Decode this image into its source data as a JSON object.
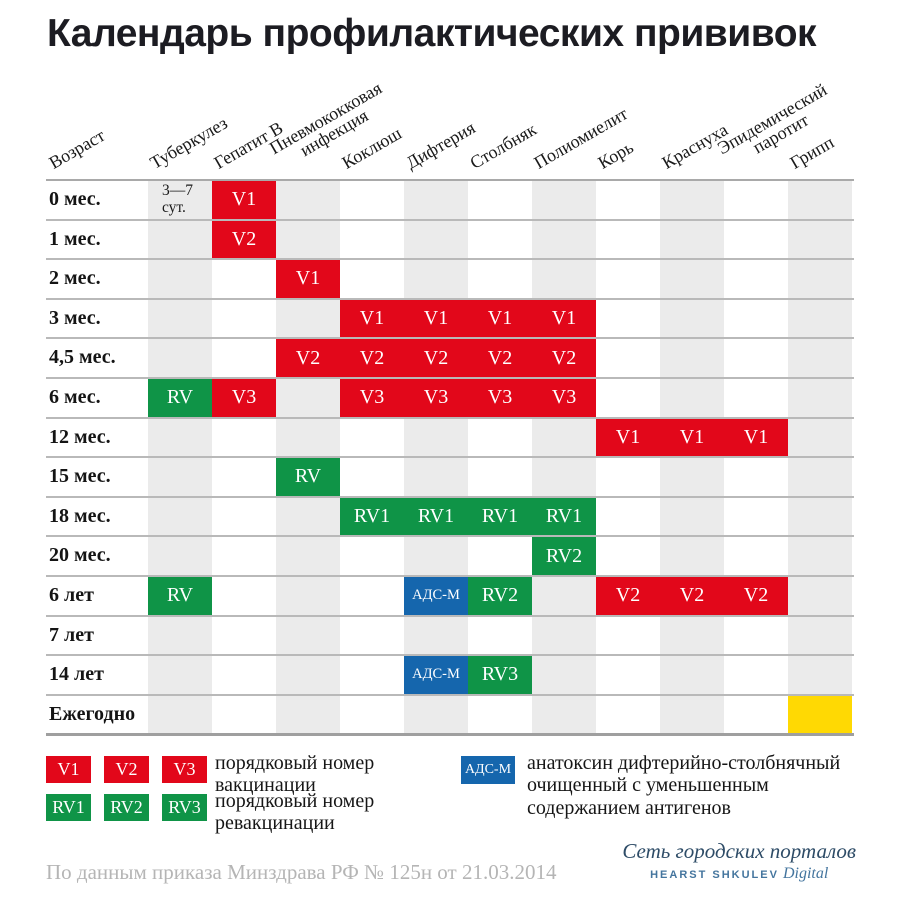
{
  "title": "Календарь профилактических прививок",
  "colors": {
    "vaccination_red": "#e2071a",
    "revaccination_green": "#0f9447",
    "adsm_blue": "#1566ad",
    "flu_yellow": "#ffd903",
    "column_stripe": "#ebebeb",
    "row_line": "#b9b9b9"
  },
  "chart_data": {
    "type": "table",
    "title": "Календарь профилактических прививок",
    "age_column_header": "Возраст",
    "columns": [
      "Туберкулез",
      "Гепатит В",
      "Пневмококковая\nинфекция",
      "Коклюш",
      "Дифтерия",
      "Столбняк",
      "Полиомиелит",
      "Корь",
      "Краснуха",
      "Эпидемический\nпаротит",
      "Грипп"
    ],
    "rows": [
      {
        "age": "0 мес.",
        "cells": [
          {
            "col": 0,
            "label": "3—7\nсут.",
            "kind": "note"
          },
          {
            "col": 1,
            "label": "V1",
            "kind": "v"
          }
        ]
      },
      {
        "age": "1 мес.",
        "cells": [
          {
            "col": 1,
            "label": "V2",
            "kind": "v"
          }
        ]
      },
      {
        "age": "2 мес.",
        "cells": [
          {
            "col": 2,
            "label": "V1",
            "kind": "v"
          }
        ]
      },
      {
        "age": "3 мес.",
        "cells": [
          {
            "col": 3,
            "label": "V1",
            "kind": "v"
          },
          {
            "col": 4,
            "label": "V1",
            "kind": "v"
          },
          {
            "col": 5,
            "label": "V1",
            "kind": "v"
          },
          {
            "col": 6,
            "label": "V1",
            "kind": "v"
          }
        ]
      },
      {
        "age": "4,5 мес.",
        "cells": [
          {
            "col": 2,
            "label": "V2",
            "kind": "v"
          },
          {
            "col": 3,
            "label": "V2",
            "kind": "v"
          },
          {
            "col": 4,
            "label": "V2",
            "kind": "v"
          },
          {
            "col": 5,
            "label": "V2",
            "kind": "v"
          },
          {
            "col": 6,
            "label": "V2",
            "kind": "v"
          }
        ]
      },
      {
        "age": "6 мес.",
        "cells": [
          {
            "col": 0,
            "label": "RV",
            "kind": "rv"
          },
          {
            "col": 1,
            "label": "V3",
            "kind": "v"
          },
          {
            "col": 3,
            "label": "V3",
            "kind": "v"
          },
          {
            "col": 4,
            "label": "V3",
            "kind": "v"
          },
          {
            "col": 5,
            "label": "V3",
            "kind": "v"
          },
          {
            "col": 6,
            "label": "V3",
            "kind": "v"
          }
        ]
      },
      {
        "age": "12 мес.",
        "cells": [
          {
            "col": 7,
            "label": "V1",
            "kind": "v"
          },
          {
            "col": 8,
            "label": "V1",
            "kind": "v"
          },
          {
            "col": 9,
            "label": "V1",
            "kind": "v"
          }
        ]
      },
      {
        "age": "15 мес.",
        "cells": [
          {
            "col": 2,
            "label": "RV",
            "kind": "rv"
          }
        ]
      },
      {
        "age": "18 мес.",
        "cells": [
          {
            "col": 3,
            "label": "RV1",
            "kind": "rv"
          },
          {
            "col": 4,
            "label": "RV1",
            "kind": "rv"
          },
          {
            "col": 5,
            "label": "RV1",
            "kind": "rv"
          },
          {
            "col": 6,
            "label": "RV1",
            "kind": "rv"
          }
        ]
      },
      {
        "age": "20 мес.",
        "cells": [
          {
            "col": 6,
            "label": "RV2",
            "kind": "rv"
          }
        ]
      },
      {
        "age": "6 лет",
        "cells": [
          {
            "col": 0,
            "label": "RV",
            "kind": "rv"
          },
          {
            "col": 4,
            "label": "АДС-М",
            "kind": "adsm"
          },
          {
            "col": 5,
            "label": "RV2",
            "kind": "rv"
          },
          {
            "col": 7,
            "label": "V2",
            "kind": "v"
          },
          {
            "col": 8,
            "label": "V2",
            "kind": "v"
          },
          {
            "col": 9,
            "label": "V2",
            "kind": "v"
          }
        ]
      },
      {
        "age": "7 лет",
        "cells": []
      },
      {
        "age": "14 лет",
        "cells": [
          {
            "col": 4,
            "label": "АДС-М",
            "kind": "adsm"
          },
          {
            "col": 5,
            "label": "RV3",
            "kind": "rv"
          }
        ]
      },
      {
        "age": "Ежегодно",
        "cells": [
          {
            "col": 10,
            "label": "",
            "kind": "flu"
          }
        ]
      }
    ]
  },
  "legend": {
    "vaccination": {
      "chips": [
        "V1",
        "V2",
        "V3"
      ],
      "text": "порядковый номер\nвакцинации"
    },
    "revaccination": {
      "chips": [
        "RV1",
        "RV2",
        "RV3"
      ],
      "text": "порядковый номер\nревакцинации"
    },
    "adsm": {
      "chip": "АДС-М",
      "text": "анатоксин дифтерийно-столбнячный\nочищенный с уменьшенным\nсодержанием антигенов"
    }
  },
  "footer": {
    "source": "По данным приказа Минздрава РФ № 125н от 21.03.2014",
    "logo_line1": "Сеть городских порталов",
    "logo_brand": "HEARST SHKULEV",
    "logo_brand_suffix": "Digital"
  }
}
